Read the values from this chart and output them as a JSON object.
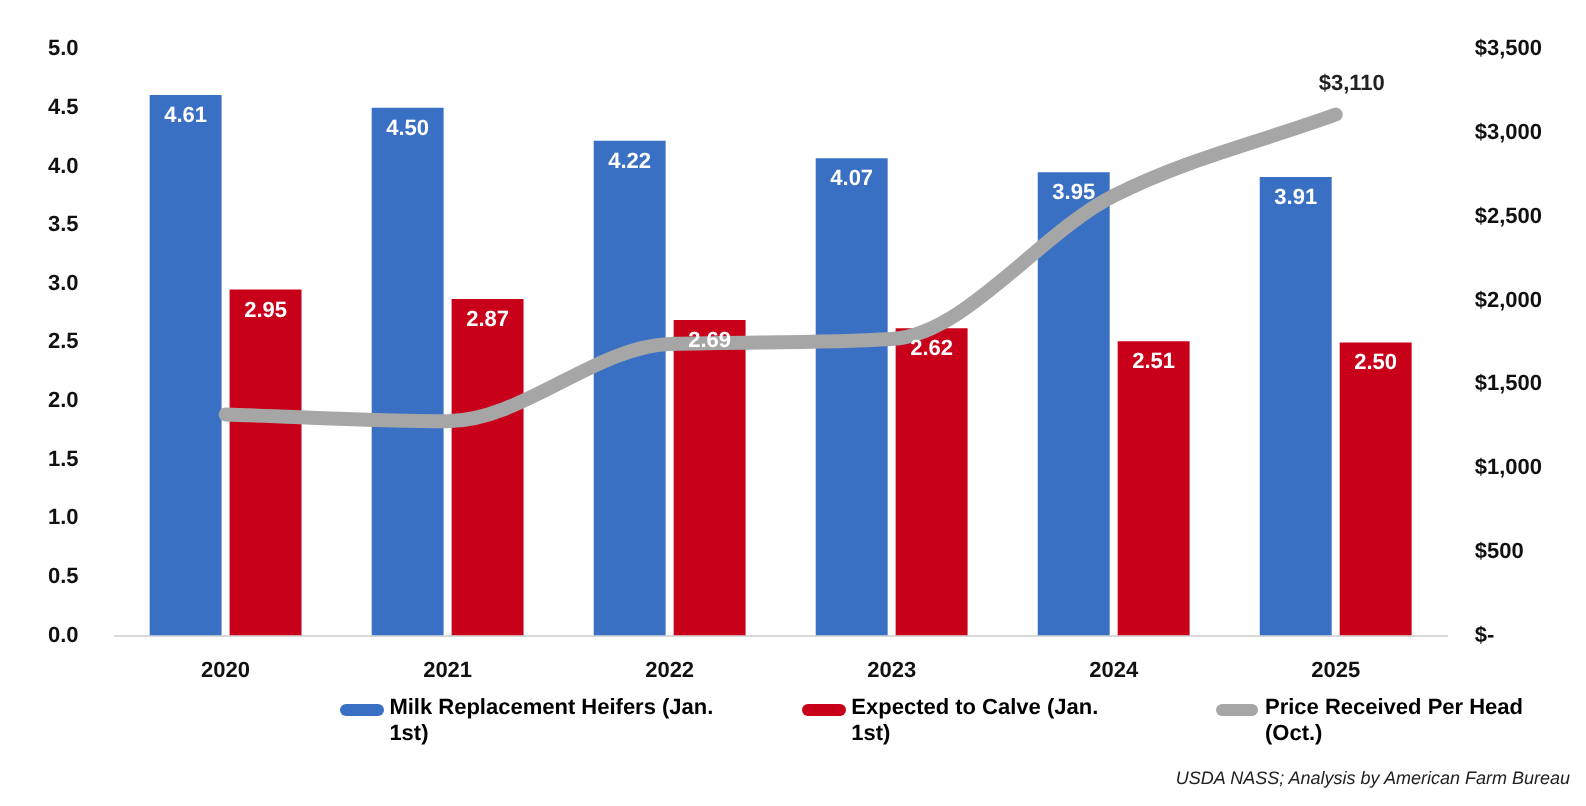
{
  "chart_data": {
    "type": "bar",
    "categories": [
      "2020",
      "2021",
      "2022",
      "2023",
      "2024",
      "2025"
    ],
    "series": [
      {
        "name": "Milk Replacement Heifers (Jan. 1st)",
        "color": "#3a70c4",
        "values": [
          4.61,
          4.5,
          4.22,
          4.07,
          3.95,
          3.91
        ],
        "value_labels": [
          "4.61",
          "4.50",
          "4.22",
          "4.07",
          "3.95",
          "3.91"
        ]
      },
      {
        "name": "Expected to Calve (Jan. 1st)",
        "color": "#c8001a",
        "values": [
          2.95,
          2.87,
          2.69,
          2.62,
          2.51,
          2.5
        ],
        "value_labels": [
          "2.95",
          "2.87",
          "2.69",
          "2.62",
          "2.51",
          "2.50"
        ]
      },
      {
        "name": "Price Received Per Head (Oct.)",
        "type": "line",
        "axis": "y2",
        "color": "#a6a6a6",
        "values": [
          1320,
          1280,
          1740,
          1770,
          2625,
          3110
        ],
        "value_labels": [
          null,
          null,
          null,
          null,
          null,
          "$3,110"
        ]
      }
    ],
    "ylim": [
      0,
      5
    ],
    "yticks": [
      {
        "value": 0,
        "label": "0.0"
      },
      {
        "value": 0.5,
        "label": "0.5"
      },
      {
        "value": 1,
        "label": "1.0"
      },
      {
        "value": 1.5,
        "label": "1.5"
      },
      {
        "value": 2,
        "label": "2.0"
      },
      {
        "value": 2.5,
        "label": "2.5"
      },
      {
        "value": 3,
        "label": "3.0"
      },
      {
        "value": 3.5,
        "label": "3.5"
      },
      {
        "value": 4,
        "label": "4.0"
      },
      {
        "value": 4.5,
        "label": "4.5"
      },
      {
        "value": 5,
        "label": "5.0"
      }
    ],
    "y2lim": [
      0,
      3500
    ],
    "y2ticks": [
      {
        "value": 0,
        "label": "$-"
      },
      {
        "value": 500,
        "label": "$500"
      },
      {
        "value": 1000,
        "label": "$1,000"
      },
      {
        "value": 1500,
        "label": "$1,500"
      },
      {
        "value": 2000,
        "label": "$2,000"
      },
      {
        "value": 2500,
        "label": "$2,500"
      },
      {
        "value": 3000,
        "label": "$3,000"
      },
      {
        "value": 3500,
        "label": "$3,500"
      }
    ],
    "grid": false,
    "legend": "bottom",
    "marker": "none",
    "annotations": [
      "USDA NASS; Analysis by American Farm Bureau"
    ]
  }
}
